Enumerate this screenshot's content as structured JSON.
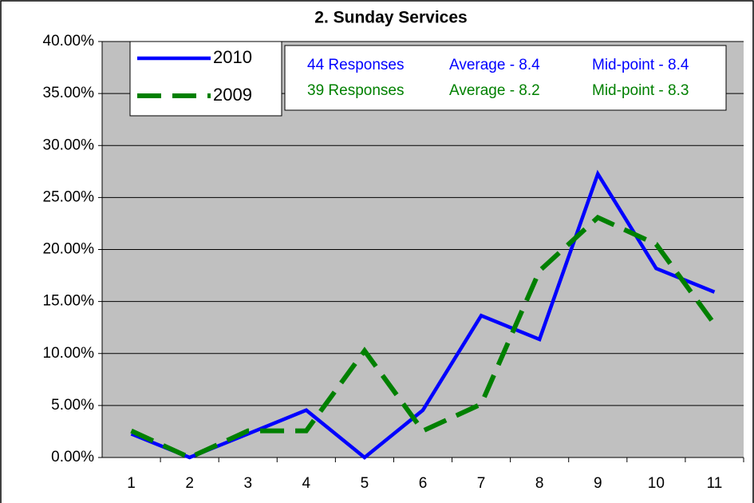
{
  "chart_data": {
    "type": "line",
    "title": "2. Sunday Services",
    "categories": [
      "1",
      "2",
      "3",
      "4",
      "5",
      "6",
      "7",
      "8",
      "9",
      "10",
      "11"
    ],
    "series": [
      {
        "name": "2010",
        "color": "#0000ff",
        "dashed": false,
        "values": [
          2.27,
          0,
          2.27,
          4.55,
          0,
          4.55,
          13.64,
          11.36,
          27.27,
          18.18,
          15.91
        ]
      },
      {
        "name": "2009",
        "color": "#008000",
        "dashed": true,
        "values": [
          2.56,
          0,
          2.56,
          2.56,
          10.26,
          2.56,
          5.13,
          17.95,
          23.08,
          20.51,
          12.82
        ]
      }
    ],
    "ylim": [
      0,
      40
    ],
    "yticks": [
      {
        "value": 0,
        "label": "0.00%"
      },
      {
        "value": 5,
        "label": "5.00%"
      },
      {
        "value": 10,
        "label": "10.00%"
      },
      {
        "value": 15,
        "label": "15.00%"
      },
      {
        "value": 20,
        "label": "20.00%"
      },
      {
        "value": 25,
        "label": "25.00%"
      },
      {
        "value": 30,
        "label": "30.00%"
      },
      {
        "value": 35,
        "label": "35.00%"
      },
      {
        "value": 40,
        "label": "40.00%"
      }
    ],
    "grid": true,
    "legend": "top-left",
    "annotations": [
      {
        "color": "#0000ff",
        "texts": [
          "44 Responses",
          "Average - 8.4",
          "Mid-point - 8.4"
        ]
      },
      {
        "color": "#008000",
        "texts": [
          "39 Responses",
          "Average - 8.2",
          "Mid-point - 8.3"
        ]
      }
    ]
  }
}
